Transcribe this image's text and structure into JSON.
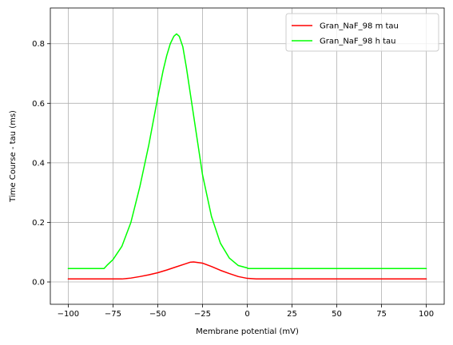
{
  "chart_data": {
    "type": "line",
    "title": "",
    "xlabel": "Membrane potential (mV)",
    "ylabel": "Time Course - tau (ms)",
    "xlim": [
      -110,
      110
    ],
    "ylim": [
      -0.075,
      0.92
    ],
    "xticks": [
      -100,
      -75,
      -50,
      -25,
      0,
      25,
      50,
      75,
      100
    ],
    "xtick_labels": [
      "−100",
      "−75",
      "−50",
      "−25",
      "0",
      "25",
      "50",
      "75",
      "100"
    ],
    "yticks": [
      0.0,
      0.2,
      0.4,
      0.6,
      0.8
    ],
    "ytick_labels": [
      "0.0",
      "0.2",
      "0.4",
      "0.6",
      "0.8"
    ],
    "grid": true,
    "legend_position": "top-right",
    "series": [
      {
        "name": "Gran_NaF_98 m tau",
        "color": "#ff0000",
        "x": [
          -100,
          -90,
          -80,
          -70,
          -68,
          -65,
          -60,
          -55,
          -50,
          -45,
          -40,
          -35,
          -32,
          -30,
          -25,
          -20,
          -15,
          -10,
          -5,
          0,
          5,
          10,
          25,
          50,
          75,
          100
        ],
        "y": [
          0.01,
          0.01,
          0.01,
          0.01,
          0.011,
          0.013,
          0.018,
          0.024,
          0.031,
          0.04,
          0.05,
          0.06,
          0.066,
          0.067,
          0.063,
          0.052,
          0.039,
          0.028,
          0.018,
          0.012,
          0.01,
          0.01,
          0.01,
          0.01,
          0.01,
          0.01
        ]
      },
      {
        "name": "Gran_NaF_98 h tau",
        "color": "#00ff00",
        "x": [
          -100,
          -90,
          -80,
          -78,
          -75,
          -70,
          -65,
          -60,
          -55,
          -50,
          -47,
          -45,
          -43,
          -41,
          -39.5,
          -38,
          -36,
          -34,
          -30,
          -25,
          -20,
          -15,
          -10,
          -5,
          0,
          0.5,
          10,
          25,
          50,
          75,
          100
        ],
        "y": [
          0.045,
          0.045,
          0.045,
          0.058,
          0.075,
          0.12,
          0.2,
          0.32,
          0.46,
          0.62,
          0.71,
          0.76,
          0.8,
          0.825,
          0.833,
          0.825,
          0.79,
          0.72,
          0.56,
          0.36,
          0.22,
          0.13,
          0.08,
          0.055,
          0.047,
          0.045,
          0.045,
          0.045,
          0.045,
          0.045,
          0.045
        ]
      }
    ]
  }
}
